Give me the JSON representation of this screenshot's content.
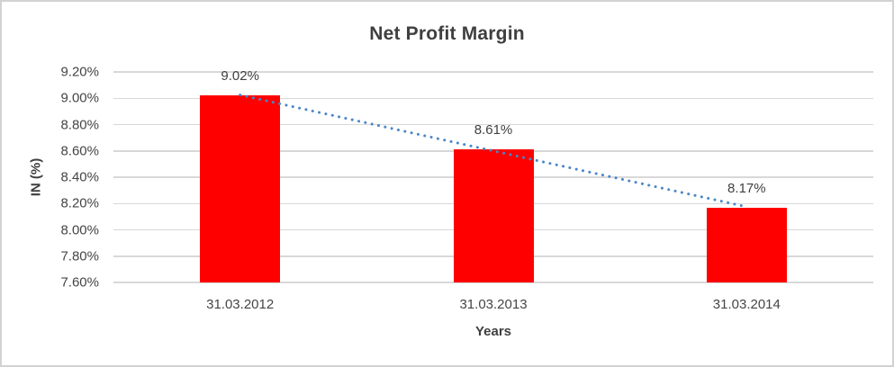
{
  "chart_data": {
    "type": "bar",
    "title": "Net Profit Margin",
    "xlabel": "Years",
    "ylabel": "IN (%)",
    "categories": [
      "31.03.2012",
      "31.03.2013",
      "31.03.2014"
    ],
    "values": [
      9.02,
      8.61,
      8.17
    ],
    "data_labels": [
      "9.02%",
      "8.61%",
      "8.17%"
    ],
    "y_ticks": [
      "9.20%",
      "9.00%",
      "8.80%",
      "8.60%",
      "8.40%",
      "8.20%",
      "8.00%",
      "7.80%",
      "7.60%"
    ],
    "ylim": [
      7.6,
      9.2
    ],
    "y_tick_step": 0.2,
    "grid": true,
    "legend": "none",
    "bar_color": "#FF0000",
    "gridline_color": "#D8D8D8",
    "trendline": {
      "style": "dotted",
      "color": "#4A86C8",
      "start_value": 9.025,
      "end_value": 8.175
    }
  }
}
